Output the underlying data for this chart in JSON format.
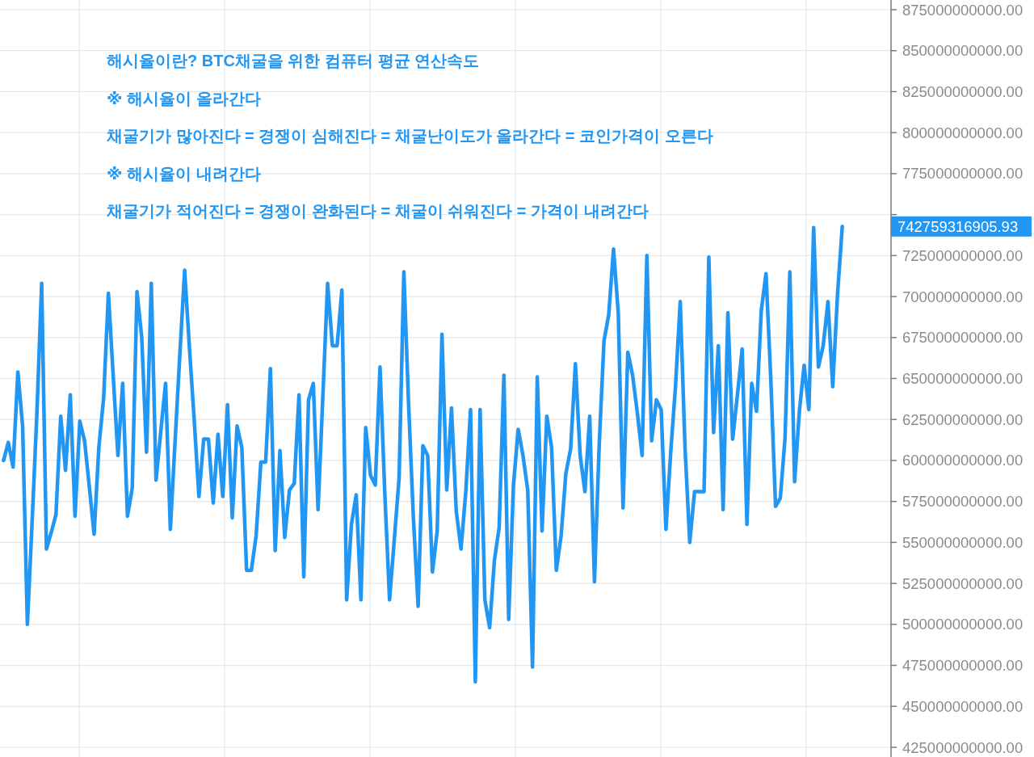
{
  "chart_data": {
    "type": "line",
    "categories": [
      null,
      null,
      null,
      null,
      null,
      null,
      null,
      null,
      null,
      null,
      null,
      null,
      null,
      null,
      null,
      null,
      null,
      null,
      null,
      null,
      null,
      null,
      null,
      null,
      null,
      null,
      null,
      null,
      null,
      null,
      null,
      null,
      null,
      null,
      null,
      null,
      null,
      null,
      null,
      null,
      null,
      null,
      null,
      null,
      null,
      null,
      null,
      null,
      null,
      null,
      null,
      null,
      null,
      null,
      null,
      null,
      null,
      null,
      null,
      null,
      null,
      null,
      null,
      null,
      null,
      null,
      null,
      null,
      null,
      null,
      null,
      null,
      null,
      null,
      null,
      null,
      null,
      null,
      null,
      null,
      null,
      null,
      null,
      null,
      null,
      null,
      null,
      null,
      null,
      null,
      null,
      null,
      null,
      null,
      null,
      null,
      null,
      null,
      null,
      null,
      null,
      null,
      null,
      null,
      null,
      null,
      null,
      null,
      null,
      null,
      null,
      null,
      null,
      null,
      null,
      null,
      null,
      null,
      null,
      null,
      null,
      null,
      null,
      null,
      null,
      null,
      null,
      null,
      null,
      null,
      null,
      null,
      null,
      null,
      null,
      null,
      null,
      null,
      null,
      null,
      null,
      null,
      null,
      null,
      null,
      null,
      null,
      null,
      null,
      null,
      null,
      null,
      null,
      null,
      null,
      null,
      null,
      null,
      null,
      null,
      null,
      null,
      null,
      null,
      null,
      null,
      null,
      null,
      null,
      null,
      null,
      null,
      null,
      null,
      null,
      null,
      null
    ],
    "series": [
      {
        "color": "#2196f3",
        "values": [
          600000000000,
          611000000000,
          596000000000,
          654000000000,
          621000000000,
          500000000000,
          563000000000,
          629000000000,
          708000000000,
          546000000000,
          556000000000,
          567000000000,
          627000000000,
          594000000000,
          640000000000,
          566000000000,
          624000000000,
          612000000000,
          584000000000,
          555000000000,
          608000000000,
          638000000000,
          702000000000,
          652000000000,
          603000000000,
          647000000000,
          566000000000,
          583000000000,
          703000000000,
          675000000000,
          605000000000,
          708000000000,
          588000000000,
          618000000000,
          647000000000,
          558000000000,
          612000000000,
          665000000000,
          716000000000,
          669000000000,
          625000000000,
          578000000000,
          613000000000,
          613000000000,
          574000000000,
          616000000000,
          578000000000,
          634000000000,
          565000000000,
          621000000000,
          608000000000,
          533000000000,
          533000000000,
          554000000000,
          599000000000,
          599000000000,
          656000000000,
          545000000000,
          606000000000,
          553000000000,
          582000000000,
          586000000000,
          640000000000,
          529000000000,
          637000000000,
          647000000000,
          570000000000,
          639000000000,
          708000000000,
          670000000000,
          670000000000,
          704000000000,
          515000000000,
          561000000000,
          579000000000,
          515000000000,
          620000000000,
          591000000000,
          585000000000,
          657000000000,
          580000000000,
          515000000000,
          552000000000,
          589000000000,
          715000000000,
          634000000000,
          565000000000,
          511000000000,
          609000000000,
          603000000000,
          532000000000,
          557000000000,
          677000000000,
          582000000000,
          632000000000,
          569000000000,
          546000000000,
          581000000000,
          631000000000,
          465000000000,
          631000000000,
          515000000000,
          498000000000,
          539000000000,
          559000000000,
          652000000000,
          503000000000,
          585000000000,
          619000000000,
          603000000000,
          582000000000,
          474000000000,
          651000000000,
          557000000000,
          627000000000,
          608000000000,
          533000000000,
          554000000000,
          592000000000,
          607000000000,
          659000000000,
          603000000000,
          581000000000,
          627000000000,
          526000000000,
          610000000000,
          673000000000,
          689000000000,
          729000000000,
          690000000000,
          571000000000,
          666000000000,
          652000000000,
          629000000000,
          603000000000,
          725000000000,
          612000000000,
          637000000000,
          631000000000,
          558000000000,
          605000000000,
          645000000000,
          697000000000,
          608000000000,
          550000000000,
          581000000000,
          581000000000,
          581000000000,
          724000000000,
          617000000000,
          670000000000,
          570000000000,
          690000000000,
          613000000000,
          640000000000,
          668000000000,
          561000000000,
          647000000000,
          630000000000,
          691000000000,
          714000000000,
          650000000000,
          572000000000,
          577000000000,
          614000000000,
          715000000000,
          587000000000,
          630000000000,
          658000000000,
          631000000000,
          742000000000,
          657000000000,
          670000000000,
          697000000000,
          645000000000,
          701000000000,
          742759316905.93
        ]
      }
    ],
    "ylim": [
      425000000000,
      875000000000
    ],
    "yticks": [
      {
        "value": 425000000000,
        "label": "425000000000.00"
      },
      {
        "value": 450000000000,
        "label": "450000000000.00"
      },
      {
        "value": 475000000000,
        "label": "475000000000.00"
      },
      {
        "value": 500000000000,
        "label": "500000000000.00"
      },
      {
        "value": 525000000000,
        "label": "525000000000.00"
      },
      {
        "value": 550000000000,
        "label": "550000000000.00"
      },
      {
        "value": 575000000000,
        "label": "575000000000.00"
      },
      {
        "value": 600000000000,
        "label": "600000000000.00"
      },
      {
        "value": 625000000000,
        "label": "625000000000.00"
      },
      {
        "value": 650000000000,
        "label": "650000000000.00"
      },
      {
        "value": 675000000000,
        "label": "675000000000.00"
      },
      {
        "value": 700000000000,
        "label": "700000000000.00"
      },
      {
        "value": 725000000000,
        "label": "725000000000.00"
      },
      {
        "value": 750000000000,
        "label": null
      },
      {
        "value": 775000000000,
        "label": "775000000000.00"
      },
      {
        "value": 800000000000,
        "label": "800000000000.00"
      },
      {
        "value": 825000000000,
        "label": "825000000000.00"
      },
      {
        "value": 850000000000,
        "label": "850000000000.00"
      },
      {
        "value": 875000000000,
        "label": "875000000000.00"
      }
    ],
    "grid": true,
    "annotations": [
      "해시율이란? BTC채굴을 위한 컴퓨터 평균 연산속도",
      "※ 해시율이 올라간다",
      "채굴기가 많아진다 = 경쟁이 심해진다 = 채굴난이도가 올라간다 = 코인가격이 오른다",
      "※ 해시율이 내려간다",
      "채굴기가 적어진다 = 경쟁이 완화된다 = 채굴이 쉬워진다 = 가격이 내려간다",
      "742759316905.93"
    ]
  }
}
